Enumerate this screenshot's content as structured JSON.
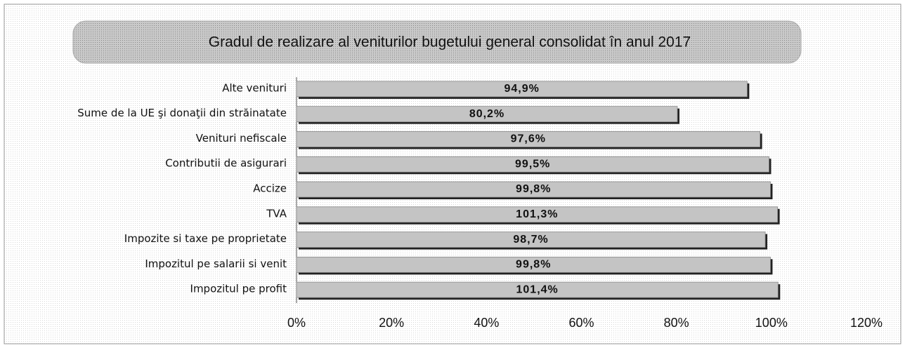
{
  "chart_data": {
    "type": "bar",
    "orientation": "horizontal",
    "title": "Gradul de realizare al veniturilor bugetului general consolidat în anul 2017",
    "categories": [
      "Alte venituri",
      "Sume de la UE şi donaţii din străinatate",
      "Venituri nefiscale",
      "Contributii de asigurari",
      "Accize",
      "TVA",
      "Impozite si taxe pe proprietate",
      "Impozitul pe salarii si venit",
      "Impozitul pe profit"
    ],
    "values": [
      94.9,
      80.2,
      97.6,
      99.5,
      99.8,
      101.3,
      98.7,
      99.8,
      101.4
    ],
    "value_labels": [
      "94,9%",
      "80,2%",
      "97,6%",
      "99,5%",
      "99,8%",
      "101,3%",
      "98,7%",
      "99,8%",
      "101,4%"
    ],
    "color": "#c4c4c4",
    "xlim": [
      0,
      120
    ],
    "xticks": [
      {
        "value": 0,
        "label": "0%"
      },
      {
        "value": 20,
        "label": "20%"
      },
      {
        "value": 40,
        "label": "40%"
      },
      {
        "value": 60,
        "label": "60%"
      },
      {
        "value": 80,
        "label": "80%"
      },
      {
        "value": 100,
        "label": "100%"
      },
      {
        "value": 120,
        "label": "120%"
      }
    ],
    "grid": false
  }
}
